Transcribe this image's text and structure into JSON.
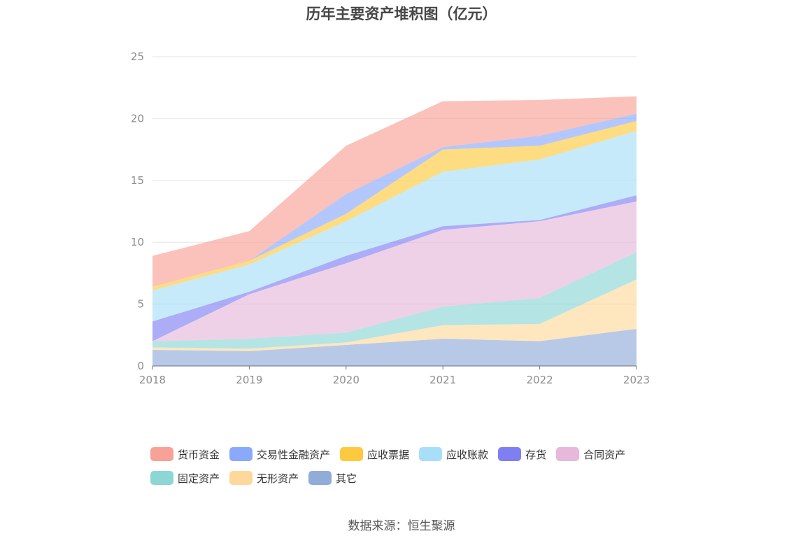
{
  "chart_data": {
    "type": "area",
    "stacked": true,
    "title": "历年主要资产堆积图（亿元）",
    "xlabel": "",
    "ylabel": "",
    "x": [
      "2018",
      "2019",
      "2020",
      "2021",
      "2022",
      "2023"
    ],
    "ylim": [
      0,
      25
    ],
    "yticks": [
      0,
      5,
      10,
      15,
      20,
      25
    ],
    "grid": true,
    "legend_position": "bottom",
    "series": [
      {
        "name": "其它",
        "color": "#90ACD9",
        "values": [
          1.3,
          1.2,
          1.7,
          2.2,
          2.0,
          3.0
        ]
      },
      {
        "name": "无形资产",
        "color": "#FDD89B",
        "values": [
          0.2,
          0.2,
          0.2,
          1.1,
          1.4,
          4.0
        ]
      },
      {
        "name": "固定资产",
        "color": "#8CD6D5",
        "values": [
          0.5,
          0.8,
          0.8,
          1.5,
          2.1,
          2.2
        ]
      },
      {
        "name": "合同资产",
        "color": "#E6B8DA",
        "values": [
          0.0,
          3.6,
          5.6,
          6.2,
          6.2,
          4.1
        ]
      },
      {
        "name": "存货",
        "color": "#7F7FF2",
        "values": [
          1.6,
          0.2,
          0.6,
          0.3,
          0.1,
          0.5
        ]
      },
      {
        "name": "应收账款",
        "color": "#A8DEF8",
        "values": [
          2.5,
          2.2,
          2.8,
          4.4,
          4.9,
          5.2
        ]
      },
      {
        "name": "应收票据",
        "color": "#FDC93E",
        "values": [
          0.3,
          0.3,
          0.6,
          1.8,
          1.1,
          0.8
        ]
      },
      {
        "name": "交易性金融资产",
        "color": "#8AA9FA",
        "values": [
          0.0,
          0.0,
          1.6,
          0.2,
          0.8,
          0.6
        ]
      },
      {
        "name": "货币资金",
        "color": "#F8A196",
        "values": [
          2.5,
          2.4,
          3.9,
          3.7,
          2.9,
          1.4
        ]
      }
    ],
    "legend_order": [
      "货币资金",
      "交易性金融资产",
      "应收票据",
      "应收账款",
      "存货",
      "合同资产",
      "固定资产",
      "无形资产",
      "其它"
    ]
  },
  "source": "数据来源：恒生聚源"
}
